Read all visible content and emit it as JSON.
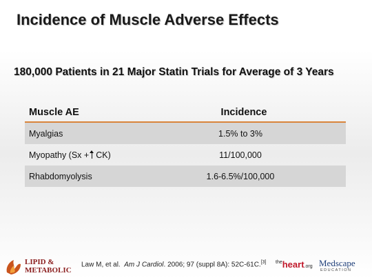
{
  "slide": {
    "title": "Incidence of Muscle Adverse Effects",
    "subtitle": "180,000 Patients in 21 Major Statin Trials for Average of 3 Years"
  },
  "table": {
    "headers": [
      "Muscle AE",
      "Incidence"
    ],
    "rows": [
      {
        "ae": "Myalgias",
        "incidence": "1.5% to 3%"
      },
      {
        "ae_prefix": "Myopathy (Sx +",
        "ae_suffix": "CK)",
        "incidence": "11/100,000"
      },
      {
        "ae": "Rhabdomyolysis",
        "incidence": "1.6-6.5%/100,000"
      }
    ]
  },
  "citation": {
    "authors": "Law M, et al.",
    "journal": "Am J Cardiol",
    "details": ". 2006; 97 (suppl 8A): 52C-61C.",
    "ref": "[3]"
  },
  "logos": {
    "lipid_line1": "LIPID &",
    "lipid_line2": "METABOLIC",
    "heart_pre": "the",
    "heart_main": "heart",
    "heart_suffix": ".org",
    "medscape_name": "Medscape",
    "medscape_sub": "EDUCATION"
  },
  "colors": {
    "header_rule": "#d9843a",
    "row_shade": "#d6d6d6",
    "lipid_logo": "#8a1c1c",
    "heart_logo": "#c0182a",
    "medscape_logo": "#1f3f7a"
  }
}
